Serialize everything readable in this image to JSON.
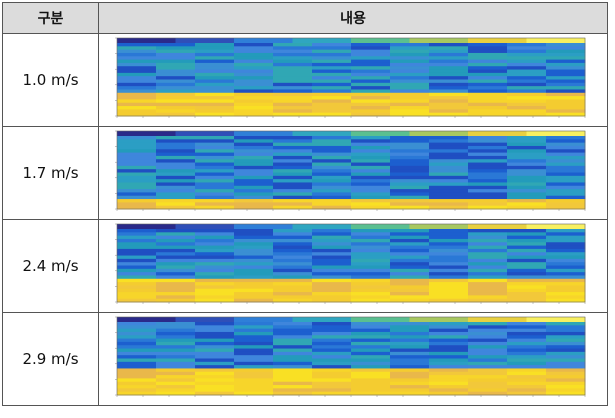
{
  "table": {
    "header": [
      "구분",
      "내용"
    ],
    "rows": [
      [
        "1.0 m/s"
      ],
      [
        "1.7 m/s"
      ],
      [
        "2.4 m/s"
      ],
      [
        "2.9 m/s"
      ]
    ]
  }
}
